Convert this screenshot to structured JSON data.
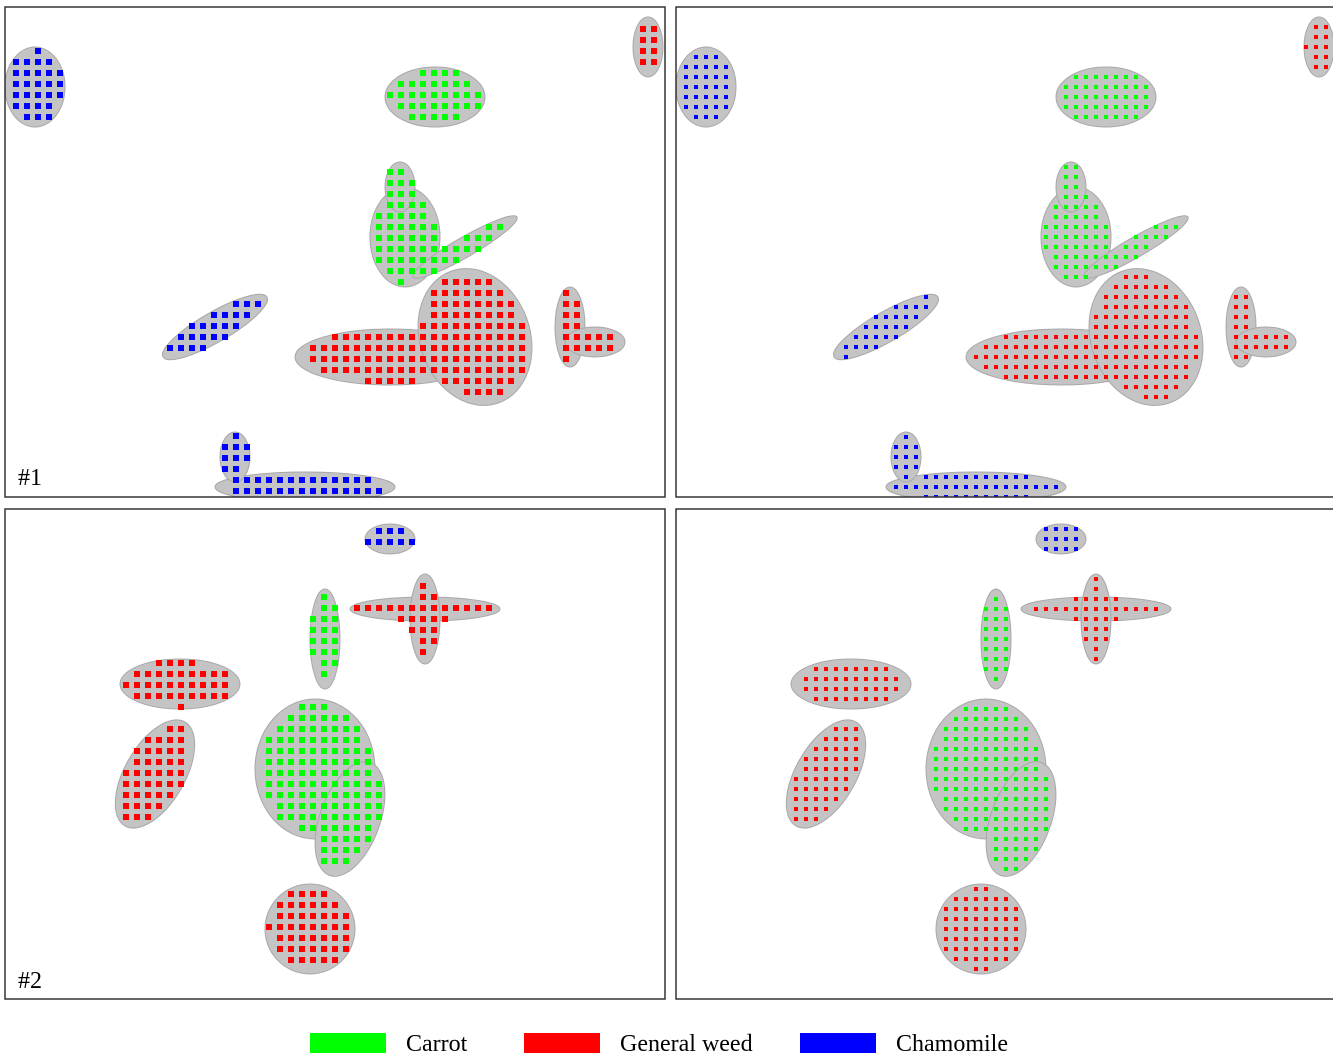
{
  "panels": [
    {
      "label": "#1"
    },
    {
      "label": "#2"
    }
  ],
  "legend": [
    {
      "name": "Carrot",
      "color": "#00ff00"
    },
    {
      "name": "General weed",
      "color": "#ff0000"
    },
    {
      "name": "Chamomile",
      "color": "#0000ff"
    }
  ]
}
